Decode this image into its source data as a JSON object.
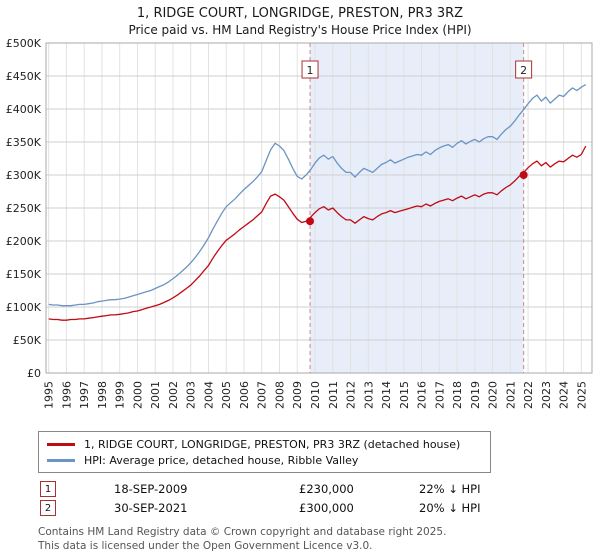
{
  "title": "1, RIDGE COURT, LONGRIDGE, PRESTON, PR3 3RZ",
  "subtitle": "Price paid vs. HM Land Registry's House Price Index (HPI)",
  "colors": {
    "price_red": "#c00a14",
    "hpi_blue": "#6b94c4",
    "shade": "#e7eef9",
    "marker_line": "#c98a8a",
    "marker_box_border": "#a83232"
  },
  "chart_data": {
    "type": "line",
    "title": "1, RIDGE COURT, LONGRIDGE, PRESTON, PR3 3RZ — Price paid vs. HPI",
    "x_start": 1995,
    "x_step": 0.25,
    "ylim_k": [
      0,
      500
    ],
    "y_ticks": [
      "£0",
      "£50K",
      "£100K",
      "£150K",
      "£200K",
      "£250K",
      "£300K",
      "£350K",
      "£400K",
      "£450K",
      "£500K"
    ],
    "x_ticks": [
      1995,
      1996,
      1997,
      1998,
      1999,
      2000,
      2001,
      2002,
      2003,
      2004,
      2005,
      2006,
      2007,
      2008,
      2009,
      2010,
      2011,
      2012,
      2013,
      2014,
      2015,
      2016,
      2017,
      2018,
      2019,
      2020,
      2021,
      2022,
      2023,
      2024,
      2025
    ],
    "shaded_region": {
      "from": 2009.72,
      "to": 2021.75,
      "color": "#e7eef9"
    },
    "marker_line_color": "#c98a8a",
    "marker_box_color": "#a83232",
    "markers": [
      {
        "label": "1",
        "x": 2009.72,
        "y_k": 230,
        "date": "18-SEP-2009",
        "price_gbp": 230000,
        "vs_hpi": "22% below HPI"
      },
      {
        "label": "2",
        "x": 2021.75,
        "y_k": 300,
        "date": "30-SEP-2021",
        "price_gbp": 300000,
        "vs_hpi": "20% below HPI"
      }
    ],
    "series": [
      {
        "id": "price-paid",
        "name": "1, RIDGE COURT, LONGRIDGE, PRESTON, PR3 3RZ (detached house)",
        "color": "#c00a14",
        "values_k": [
          82,
          81,
          81,
          80,
          80,
          81,
          81,
          82,
          82,
          83,
          84,
          85,
          86,
          87,
          88,
          88,
          89,
          90,
          91,
          93,
          94,
          96,
          98,
          100,
          102,
          104,
          107,
          110,
          114,
          118,
          123,
          128,
          133,
          140,
          147,
          155,
          163,
          174,
          184,
          193,
          201,
          206,
          211,
          217,
          222,
          227,
          232,
          238,
          244,
          257,
          268,
          271,
          267,
          262,
          252,
          242,
          233,
          228,
          230,
          236,
          243,
          249,
          252,
          247,
          250,
          243,
          237,
          232,
          232,
          227,
          232,
          237,
          234,
          232,
          237,
          241,
          243,
          246,
          243,
          245,
          247,
          249,
          251,
          253,
          252,
          256,
          253,
          257,
          260,
          262,
          264,
          261,
          265,
          268,
          264,
          267,
          270,
          267,
          271,
          273,
          273,
          270,
          276,
          281,
          285,
          291,
          298,
          304,
          311,
          317,
          321,
          314,
          319,
          312,
          317,
          321,
          320,
          325,
          330,
          327,
          331,
          344
        ]
      },
      {
        "id": "hpi",
        "name": "HPI: Average price, detached house, Ribble Valley",
        "color": "#6b94c4",
        "values_k": [
          104,
          103,
          103,
          102,
          102,
          102,
          103,
          104,
          104,
          105,
          106,
          108,
          109,
          110,
          111,
          111,
          112,
          113,
          115,
          117,
          119,
          121,
          123,
          125,
          128,
          131,
          134,
          138,
          143,
          148,
          154,
          160,
          167,
          175,
          184,
          194,
          205,
          218,
          230,
          242,
          252,
          258,
          264,
          271,
          278,
          284,
          290,
          297,
          305,
          322,
          338,
          348,
          344,
          337,
          324,
          310,
          298,
          294,
          300,
          308,
          318,
          326,
          330,
          324,
          328,
          318,
          310,
          304,
          304,
          297,
          304,
          310,
          307,
          304,
          310,
          316,
          319,
          323,
          318,
          321,
          324,
          327,
          329,
          331,
          330,
          335,
          331,
          337,
          341,
          344,
          346,
          342,
          348,
          352,
          347,
          351,
          354,
          350,
          355,
          358,
          358,
          354,
          362,
          369,
          374,
          382,
          391,
          399,
          408,
          416,
          421,
          412,
          418,
          409,
          415,
          421,
          419,
          426,
          432,
          428,
          433,
          437
        ]
      }
    ]
  },
  "legend": {
    "items": [
      {
        "label": "1, RIDGE COURT, LONGRIDGE, PRESTON, PR3 3RZ (detached house)"
      },
      {
        "label": "HPI: Average price, detached house, Ribble Valley"
      }
    ]
  },
  "annotations": [
    {
      "num": "1",
      "date": "18-SEP-2009",
      "price": "£230,000",
      "hpi": "22% ↓ HPI"
    },
    {
      "num": "2",
      "date": "30-SEP-2021",
      "price": "£300,000",
      "hpi": "20% ↓ HPI"
    }
  ],
  "footer": {
    "line1": "Contains HM Land Registry data © Crown copyright and database right 2025.",
    "line2": "This data is licensed under the Open Government Licence v3.0."
  }
}
